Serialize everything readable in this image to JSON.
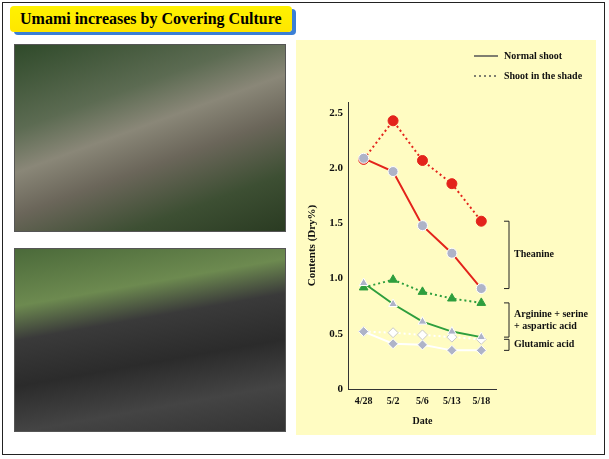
{
  "slide": {
    "title": "Umami increases by Covering Culture"
  },
  "chart_data": {
    "type": "line",
    "categories": [
      "4/28",
      "5/2",
      "5/6",
      "5/13",
      "5/18"
    ],
    "x_label": "Date",
    "y_label": "Contents (Dry%)",
    "ylim": [
      0,
      2.6
    ],
    "yticks": [
      0,
      0.5,
      {
        "value": 1,
        "label": "1.0"
      },
      1.5,
      {
        "value": 2,
        "label": "2.0"
      },
      2.5
    ],
    "grid": false,
    "legend": "top-right",
    "legend_entries": [
      {
        "name": "Normal shoot",
        "line_style": "solid"
      },
      {
        "name": "Shoot in the shade",
        "line_style": "dotted"
      }
    ],
    "series": [
      {
        "name": "Theanine",
        "color": "#e3231b",
        "line_style": "solid",
        "marker": "circle",
        "values": [
          2.09,
          1.97,
          1.48,
          1.23,
          0.91
        ]
      },
      {
        "name": "Theanine",
        "color": "#e3231b",
        "line_style": "dotted",
        "marker": "circle",
        "values": [
          2.08,
          2.43,
          2.07,
          1.86,
          1.52
        ]
      },
      {
        "name": "Arginine + serine + aspartic acid",
        "color": "#2e9e3e",
        "line_style": "solid",
        "marker": "triangle",
        "values": [
          0.96,
          0.77,
          0.61,
          0.52,
          0.47
        ]
      },
      {
        "name": "Arginine + serine + aspartic acid",
        "color": "#2e9e3e",
        "line_style": "dotted",
        "marker": "triangle",
        "values": [
          0.92,
          0.99,
          0.88,
          0.82,
          0.78
        ]
      },
      {
        "name": "Glutamic acid",
        "color": "#ffffff",
        "line_style": "solid",
        "marker": "diamond",
        "values": [
          0.52,
          0.41,
          0.4,
          0.35,
          0.35
        ]
      },
      {
        "name": "Glutamic acid",
        "color": "#ffffff",
        "line_style": "dotted",
        "marker": "diamond",
        "values": [
          0.52,
          0.51,
          0.49,
          0.47,
          0.45
        ]
      }
    ]
  }
}
